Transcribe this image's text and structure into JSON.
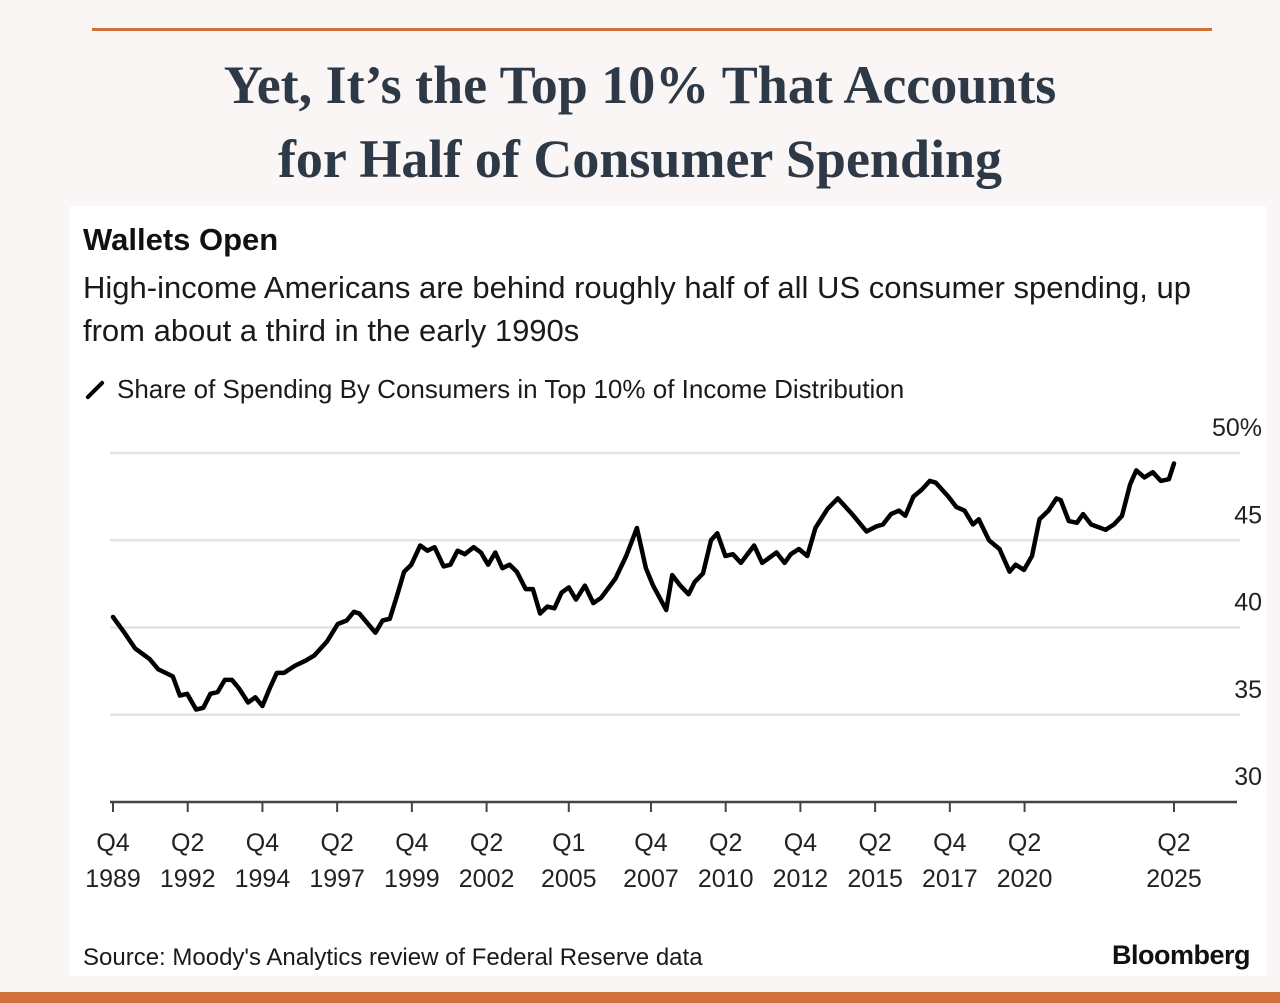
{
  "slide": {
    "title_line1": "Yet, It’s the Top 10% That Accounts",
    "title_line2": "for Half of Consumer Spending",
    "accent_color": "#d2703a",
    "title_color": "#2d3946"
  },
  "chart_data": {
    "type": "line",
    "title": "Wallets Open",
    "subtitle": "High-income Americans are behind roughly half of all US consumer spending, up from about a third in the early 1990s",
    "legend": "Share of Spending By Consumers in Top 10% of Income Distribution",
    "legend_position": "top-left",
    "source": "Source: Moody's Analytics review of Federal Reserve data",
    "brand": "Bloomberg",
    "ylim": [
      30,
      50
    ],
    "y_ticks": [
      "50%",
      "45",
      "40",
      "35",
      "30"
    ],
    "y_tick_values": [
      50,
      45,
      40,
      35,
      30
    ],
    "y_axis_side": "right",
    "grid": true,
    "xlim": [
      "Q4 1989",
      "Q2 2025"
    ],
    "x_ticks": [
      {
        "q": "Q4",
        "y": "1989",
        "date": 1989.75
      },
      {
        "q": "Q2",
        "y": "1992",
        "date": 1992.25
      },
      {
        "q": "Q4",
        "y": "1994",
        "date": 1994.75
      },
      {
        "q": "Q2",
        "y": "1997",
        "date": 1997.25
      },
      {
        "q": "Q4",
        "y": "1999",
        "date": 1999.75
      },
      {
        "q": "Q2",
        "y": "2002",
        "date": 2002.25
      },
      {
        "q": "Q1",
        "y": "2005",
        "date": 2005.0
      },
      {
        "q": "Q4",
        "y": "2007",
        "date": 2007.75
      },
      {
        "q": "Q2",
        "y": "2010",
        "date": 2010.25
      },
      {
        "q": "Q4",
        "y": "2012",
        "date": 2012.75
      },
      {
        "q": "Q2",
        "y": "2015",
        "date": 2015.25
      },
      {
        "q": "Q4",
        "y": "2017",
        "date": 2017.75
      },
      {
        "q": "Q2",
        "y": "2020",
        "date": 2020.25
      },
      {
        "q": "Q2",
        "y": "2025",
        "date": 2025.25
      }
    ],
    "line_color": "#000000",
    "series": [
      {
        "x": [
          1989.75,
          1990.13,
          1990.49,
          1990.97,
          1991.27,
          1991.75,
          1991.99,
          1992.23,
          1992.53,
          1992.77,
          1993.01,
          1993.25,
          1993.49,
          1993.73,
          1993.97,
          1994.27,
          1994.51,
          1994.75,
          1994.99,
          1995.23,
          1995.47,
          1995.83,
          1996.19,
          1996.49,
          1996.91,
          1997.27,
          1997.57,
          1997.81,
          1997.99,
          1998.53,
          1998.77,
          1999.01,
          1999.25,
          1999.49,
          1999.73,
          2000.03,
          2000.27,
          2000.51,
          2000.81,
          2001.04,
          2001.28,
          2001.52,
          2001.82,
          2002.06,
          2002.3,
          2002.54,
          2002.78,
          2003.02,
          2003.26,
          2003.56,
          2003.8,
          2004.04,
          2004.28,
          2004.52,
          2004.76,
          2005.0,
          2005.24,
          2005.54,
          2005.82,
          2006.08,
          2006.56,
          2006.92,
          2007.28,
          2007.58,
          2007.82,
          2007.98,
          2008.26,
          2008.46,
          2008.73,
          2009.01,
          2009.21,
          2009.49,
          2009.76,
          2009.97,
          2010.24,
          2010.49,
          2010.76,
          2011.2,
          2011.47,
          2011.95,
          2012.22,
          2012.43,
          2012.7,
          2012.98,
          2013.25,
          2013.66,
          2014.0,
          2014.48,
          2014.96,
          2015.3,
          2015.51,
          2015.78,
          2016.05,
          2016.26,
          2016.53,
          2016.81,
          2017.08,
          2017.28,
          2017.7,
          2017.97,
          2018.24,
          2018.52,
          2018.72,
          2019.06,
          2019.41,
          2019.75,
          2019.95,
          2020.23,
          2020.5,
          2020.75,
          2021.05,
          2021.32,
          2021.46,
          2021.73,
          2022.0,
          2022.21,
          2022.48,
          2022.96,
          2023.24,
          2023.51,
          2023.78,
          2023.99,
          2024.26,
          2024.54,
          2024.81,
          2025.08,
          2025.25
        ],
        "values": [
          40.6,
          39.7,
          38.8,
          38.2,
          37.6,
          37.2,
          36.1,
          36.2,
          35.3,
          35.4,
          36.2,
          36.3,
          37.0,
          37.0,
          36.5,
          35.7,
          36.0,
          35.5,
          36.5,
          37.4,
          37.4,
          37.8,
          38.1,
          38.4,
          39.2,
          40.2,
          40.4,
          40.9,
          40.8,
          39.7,
          40.4,
          40.5,
          41.8,
          43.2,
          43.6,
          44.7,
          44.4,
          44.6,
          43.5,
          43.6,
          44.4,
          44.2,
          44.6,
          44.3,
          43.6,
          44.3,
          43.4,
          43.6,
          43.2,
          42.2,
          42.2,
          40.8,
          41.2,
          41.1,
          42.0,
          42.3,
          41.6,
          42.4,
          41.4,
          41.7,
          42.8,
          44.1,
          45.7,
          43.4,
          42.4,
          41.9,
          41.0,
          43.0,
          42.4,
          41.9,
          42.6,
          43.1,
          45.0,
          45.4,
          44.1,
          44.2,
          43.7,
          44.7,
          43.7,
          44.3,
          43.7,
          44.2,
          44.5,
          44.1,
          45.7,
          46.8,
          47.4,
          46.5,
          45.5,
          45.8,
          45.9,
          46.5,
          46.7,
          46.4,
          47.5,
          47.9,
          48.4,
          48.3,
          47.5,
          46.9,
          46.7,
          45.9,
          46.2,
          45.0,
          44.5,
          43.2,
          43.6,
          43.3,
          44.1,
          46.2,
          46.7,
          47.4,
          47.3,
          46.1,
          46.0,
          46.5,
          45.9,
          45.6,
          45.9,
          46.4,
          48.2,
          49.0,
          48.6,
          48.9,
          48.4,
          48.5,
          49.4
        ]
      }
    ]
  }
}
